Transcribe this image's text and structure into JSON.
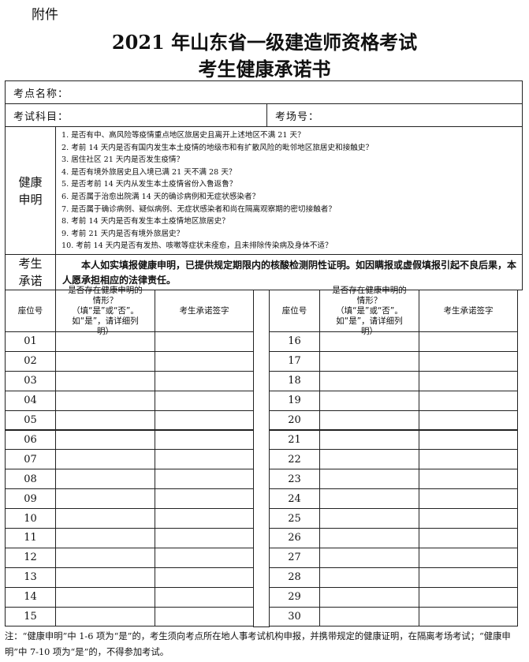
{
  "annex": "附件",
  "title_line1": "2021 年山东省一级建造师资格考试",
  "title_line2": "考生健康承诺书",
  "fields": {
    "site_name": "考点名称：",
    "subject": "考试科目：",
    "room": "考场号："
  },
  "health": {
    "label": "健康申明",
    "questions": [
      "1. 是否有中、高风险等疫情重点地区旅居史且离开上述地区不满 21 天？",
      "2. 考前 14 天内是否有国内发生本土疫情的地级市和有扩散风险的毗邻地区旅居史和接触史？",
      "3. 居住社区 21 天内是否发生疫情？",
      "4. 是否有境外旅居史且入境已满 21 天不满 28 天？",
      "5. 是否考前 14 天内从发生本土疫情省份入鲁返鲁？",
      "6. 是否属于治愈出院满 14 天的确诊病例和无症状感染者？",
      "7. 是否属于确诊病例、疑似病例、无症状感染者和尚在隔离观察期的密切接触者？",
      "8. 考前 14 天内是否有发生本土疫情地区旅居史？",
      "9. 考前 21 天内是否有境外旅居史？",
      "10. 考前 14 天内是否有发热、咳嗽等症状未痊愈，且未排除传染病及身体不适？"
    ]
  },
  "promise": {
    "label": "考生承诺",
    "text": "本人如实填报健康申明，已提供规定期限内的核酸检测阴性证明。如因瞒报或虚假填报引起不良后果，本人愿承担相应的法律责任。"
  },
  "columns": {
    "seat": "座位号",
    "status": "是否存在健康申明的情形？（填“是”或“否”。如“是”，请详细列明）",
    "signature": "考生承诺签字"
  },
  "seats_left": [
    "01",
    "02",
    "03",
    "04",
    "05",
    "06",
    "07",
    "08",
    "09",
    "10",
    "11",
    "12",
    "13",
    "14",
    "15"
  ],
  "seats_right": [
    "16",
    "17",
    "18",
    "19",
    "20",
    "21",
    "22",
    "23",
    "24",
    "25",
    "26",
    "27",
    "28",
    "29",
    "30"
  ],
  "note": "注：“健康申明”中 1-6 项为“是”的，考生须向考点所在地人事考试机构申报，并携带规定的健康证明，在隔离考场考试；“健康申明”中 7-10 项为“是”的，不得参加考试。"
}
